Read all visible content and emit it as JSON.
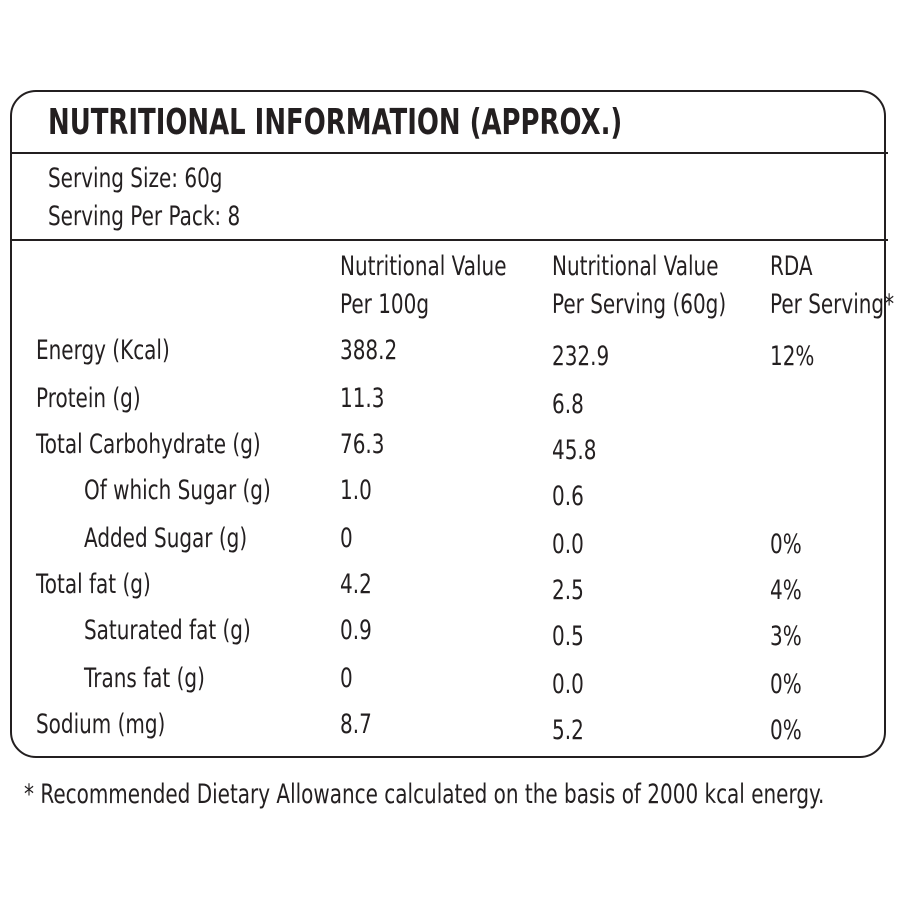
{
  "header": {
    "title": "NUTRITIONAL INFORMATION (APPROX.)"
  },
  "serving": [
    "Serving Size: 60g",
    "Serving Per Pack: 8"
  ],
  "table": {
    "columns": [
      [
        "Nutritional Value",
        "Per 100g"
      ],
      [
        "Nutritional Value",
        "Per Serving (60g)"
      ],
      [
        "RDA",
        "Per Serving*"
      ]
    ],
    "rows": [
      {
        "label": "Energy (Kcal)",
        "per_100g": "388.2",
        "per_serving": "232.9",
        "rda": "12%"
      },
      {
        "label": "Protein (g)",
        "per_100g": "11.3",
        "per_serving": "6.8"
      },
      {
        "label": "Total Carbohydrate (g)",
        "per_100g": "76.3",
        "per_serving": "45.8"
      },
      {
        "label": "Of which Sugar (g)",
        "per_100g": "1.0",
        "per_serving": "0.6"
      },
      {
        "label": "Added Sugar (g)",
        "per_100g": "0",
        "per_serving": "0.0",
        "rda": "0%"
      },
      {
        "label": "Total fat (g)",
        "per_100g": "4.2",
        "per_serving": "2.5",
        "rda": "4%"
      },
      {
        "label": "Saturated fat (g)",
        "per_100g": "0.9",
        "per_serving": "0.5",
        "rda": "3%"
      },
      {
        "label": "Trans fat (g)",
        "per_100g": "0",
        "per_serving": "0.0",
        "rda": "0%"
      },
      {
        "label": "Sodium (mg)",
        "per_100g": "8.7",
        "per_serving": "5.2",
        "rda": "0%"
      }
    ]
  },
  "footnote": "* Recommended Dietary Allowance calculated on the basis of 2000 kcal energy."
}
